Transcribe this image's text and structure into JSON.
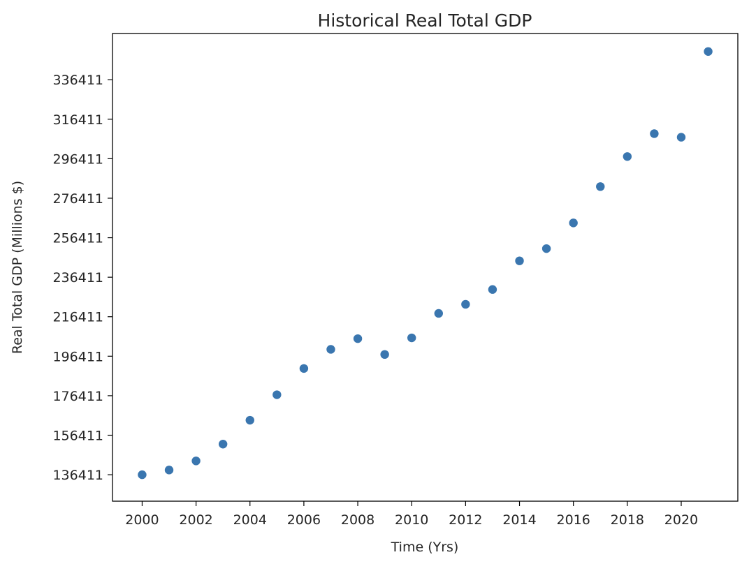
{
  "chart_data": {
    "type": "scatter",
    "title": "Historical Real Total GDP",
    "xlabel": "Time (Yrs)",
    "ylabel": "Real Total GDP (Millions $)",
    "xlim": [
      1998.9,
      2022.1
    ],
    "ylim": [
      123011,
      359811
    ],
    "x_ticks": [
      2000,
      2002,
      2004,
      2006,
      2008,
      2010,
      2012,
      2014,
      2016,
      2018,
      2020
    ],
    "y_ticks": [
      136411,
      156411,
      176411,
      196411,
      216411,
      236411,
      256411,
      276411,
      296411,
      316411,
      336411
    ],
    "grid": false,
    "marker_color": "#3a76af",
    "series": [
      {
        "x": [
          2000,
          2001,
          2002,
          2003,
          2004,
          2005,
          2006,
          2007,
          2008,
          2009,
          2010,
          2011,
          2012,
          2013,
          2014,
          2015,
          2016,
          2017,
          2018,
          2019,
          2020,
          2021
        ],
        "values": [
          136411,
          138800,
          143400,
          151900,
          164000,
          176900,
          190200,
          199900,
          205300,
          197300,
          205700,
          218100,
          222700,
          230200,
          244700,
          250900,
          263900,
          282300,
          297500,
          309100,
          307300,
          350700
        ]
      }
    ]
  }
}
